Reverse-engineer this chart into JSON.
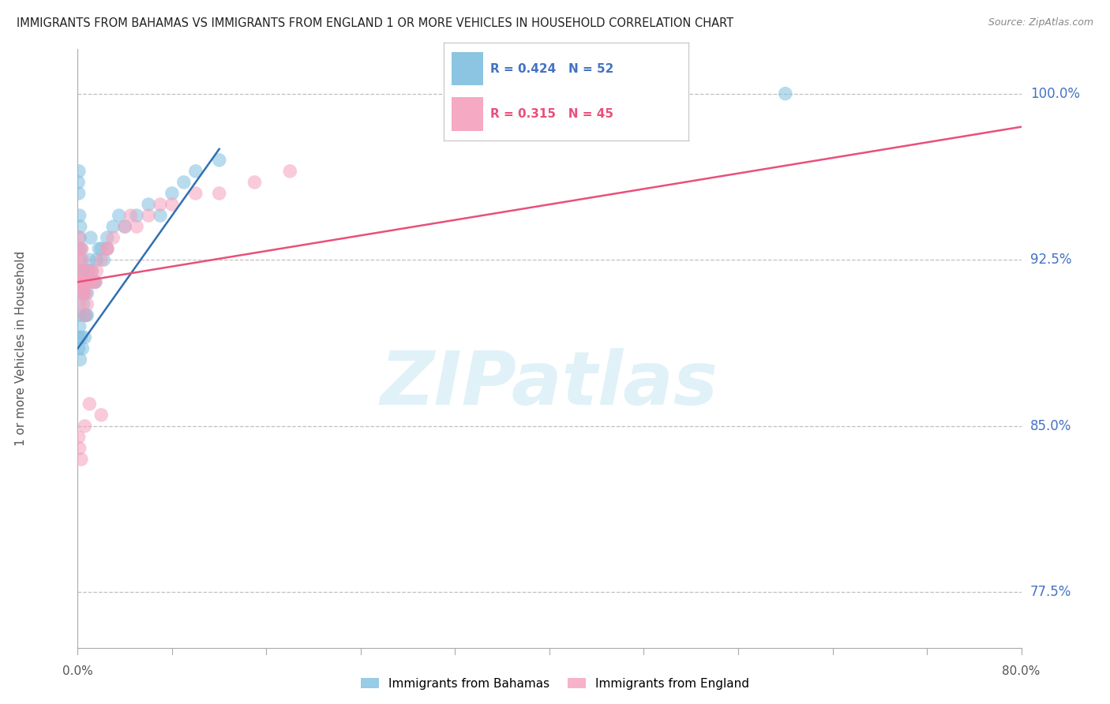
{
  "title": "IMMIGRANTS FROM BAHAMAS VS IMMIGRANTS FROM ENGLAND 1 OR MORE VEHICLES IN HOUSEHOLD CORRELATION CHART",
  "source": "Source: ZipAtlas.com",
  "ylabel_label": "1 or more Vehicles in Household",
  "legend1_label": "Immigrants from Bahamas",
  "legend2_label": "Immigrants from England",
  "R_blue": 0.424,
  "N_blue": 52,
  "R_pink": 0.315,
  "N_pink": 45,
  "x_min": 0.0,
  "x_max": 80.0,
  "y_min": 75.0,
  "y_max": 102.0,
  "y_ticks": [
    77.5,
    85.0,
    92.5,
    100.0
  ],
  "blue_color": "#7fbfdf",
  "pink_color": "#f5a0bc",
  "blue_line_color": "#3070b0",
  "pink_line_color": "#e8507a",
  "watermark_text": "ZIPatlas",
  "blue_dots_x": [
    0.05,
    0.08,
    0.1,
    0.12,
    0.15,
    0.18,
    0.2,
    0.22,
    0.25,
    0.28,
    0.3,
    0.35,
    0.4,
    0.45,
    0.5,
    0.55,
    0.6,
    0.65,
    0.7,
    0.8,
    0.9,
    1.0,
    1.1,
    1.2,
    1.4,
    1.6,
    1.8,
    2.0,
    2.2,
    2.5,
    3.0,
    3.5,
    4.0,
    5.0,
    6.0,
    7.0,
    8.0,
    9.0,
    10.0,
    12.0,
    0.05,
    0.07,
    0.1,
    0.15,
    0.2,
    0.3,
    0.4,
    0.6,
    0.8,
    1.5,
    2.5,
    60.0
  ],
  "blue_dots_y": [
    96.0,
    95.5,
    96.5,
    93.0,
    94.5,
    93.5,
    92.0,
    94.0,
    91.5,
    92.5,
    93.0,
    91.0,
    92.0,
    91.5,
    90.5,
    91.0,
    90.0,
    91.5,
    90.0,
    91.0,
    92.0,
    92.5,
    93.5,
    92.0,
    91.5,
    92.5,
    93.0,
    93.0,
    92.5,
    93.5,
    94.0,
    94.5,
    94.0,
    94.5,
    95.0,
    94.5,
    95.5,
    96.0,
    96.5,
    97.0,
    89.0,
    88.5,
    90.0,
    89.5,
    88.0,
    89.0,
    88.5,
    89.0,
    90.0,
    91.5,
    93.0,
    100.0
  ],
  "pink_dots_x": [
    0.05,
    0.08,
    0.12,
    0.15,
    0.2,
    0.25,
    0.3,
    0.35,
    0.4,
    0.5,
    0.6,
    0.7,
    0.8,
    0.9,
    1.0,
    1.2,
    1.4,
    1.6,
    2.0,
    2.5,
    3.0,
    4.0,
    5.0,
    6.0,
    8.0,
    10.0,
    12.0,
    15.0,
    18.0,
    0.1,
    0.2,
    0.4,
    0.6,
    0.8,
    1.5,
    2.5,
    4.5,
    7.0,
    0.08,
    0.15,
    0.3,
    0.6,
    1.0,
    2.0,
    50.0
  ],
  "pink_dots_y": [
    92.5,
    93.5,
    92.0,
    93.0,
    91.5,
    92.0,
    91.5,
    93.0,
    92.5,
    91.0,
    91.5,
    91.0,
    91.5,
    92.0,
    91.5,
    92.0,
    91.5,
    92.0,
    92.5,
    93.0,
    93.5,
    94.0,
    94.0,
    94.5,
    95.0,
    95.5,
    95.5,
    96.0,
    96.5,
    91.5,
    90.5,
    91.0,
    90.0,
    90.5,
    91.5,
    93.0,
    94.5,
    95.0,
    84.5,
    84.0,
    83.5,
    85.0,
    86.0,
    85.5,
    100.0
  ],
  "blue_line_x0": 0.0,
  "blue_line_y0": 88.5,
  "blue_line_x1": 12.0,
  "blue_line_y1": 97.5,
  "pink_line_x0": 0.0,
  "pink_line_y0": 91.5,
  "pink_line_x1": 80.0,
  "pink_line_y1": 98.5
}
